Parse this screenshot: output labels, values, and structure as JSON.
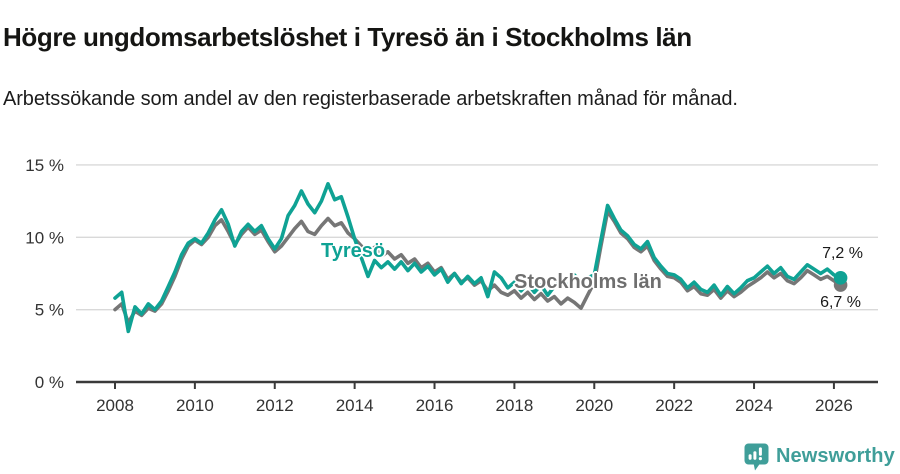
{
  "header": {
    "title": "Högre ungdomsarbetslöshet i Tyresö än i Stockholms län",
    "subtitle": "Arbetssökande som andel av den registerbaserade arbetskraften månad för månad."
  },
  "chart_data": {
    "type": "line",
    "x_start": 2008,
    "x_step": 0.16667,
    "x_unit": "year (monthly data)",
    "xlim": [
      2007.1,
      2027.15
    ],
    "ylim": [
      0,
      15
    ],
    "grid": "horizontal",
    "legend_position": "inline-labels-on-chart",
    "x_ticks": [
      2008,
      2010,
      2012,
      2014,
      2016,
      2018,
      2020,
      2022,
      2024,
      2026
    ],
    "y_ticks": [
      {
        "value": 0,
        "label": "0 %"
      },
      {
        "value": 5,
        "label": "5 %"
      },
      {
        "value": 10,
        "label": "10 %"
      },
      {
        "value": 15,
        "label": "15 %"
      }
    ],
    "series": [
      {
        "name": "Tyresö",
        "color": "#0fa294",
        "end_label": "7,2 %",
        "end_value": 7.2,
        "values": [
          5.8,
          6.2,
          3.5,
          5.2,
          4.7,
          5.4,
          5.0,
          5.6,
          6.6,
          7.6,
          8.8,
          9.6,
          9.9,
          9.6,
          10.3,
          11.2,
          11.9,
          10.9,
          9.4,
          10.4,
          10.9,
          10.4,
          10.8,
          9.9,
          9.2,
          9.9,
          11.5,
          12.2,
          13.2,
          12.3,
          11.7,
          12.5,
          13.7,
          12.6,
          12.8,
          11.4,
          9.9,
          8.6,
          7.3,
          8.4,
          7.9,
          8.3,
          7.8,
          8.3,
          7.7,
          8.2,
          7.6,
          8.0,
          7.4,
          7.8,
          6.9,
          7.5,
          6.8,
          7.3,
          6.8,
          7.2,
          5.9,
          7.6,
          7.2,
          6.5,
          6.9,
          6.3,
          6.8,
          6.2,
          6.7,
          6.0,
          6.6,
          7.0,
          6.6,
          7.4,
          6.9,
          7.2,
          7.4,
          9.8,
          12.2,
          11.3,
          10.5,
          10.1,
          9.5,
          9.2,
          9.7,
          8.6,
          8.0,
          7.5,
          7.4,
          7.1,
          6.5,
          6.9,
          6.4,
          6.2,
          6.7,
          6.0,
          6.6,
          6.1,
          6.5,
          7.0,
          7.2,
          7.6,
          8.0,
          7.5,
          7.9,
          7.3,
          7.1,
          7.6,
          8.1,
          7.8,
          7.5,
          7.8,
          7.4,
          7.2
        ]
      },
      {
        "name": "Stockholms län",
        "color": "#767676",
        "end_label": "6,7 %",
        "end_value": 6.7,
        "values": [
          5.0,
          5.4,
          4.1,
          4.9,
          4.6,
          5.1,
          4.9,
          5.4,
          6.3,
          7.3,
          8.5,
          9.4,
          9.8,
          9.5,
          10.0,
          10.8,
          11.2,
          10.4,
          9.5,
          10.2,
          10.7,
          10.2,
          10.5,
          9.7,
          9.0,
          9.4,
          10.0,
          10.6,
          11.1,
          10.4,
          10.2,
          10.8,
          11.3,
          10.8,
          11.0,
          10.3,
          9.9,
          9.4,
          8.9,
          9.3,
          8.7,
          9.0,
          8.5,
          8.8,
          8.2,
          8.5,
          7.9,
          8.2,
          7.6,
          7.9,
          7.1,
          7.5,
          6.9,
          7.2,
          6.7,
          7.0,
          6.3,
          6.7,
          6.2,
          6.0,
          6.3,
          5.8,
          6.2,
          5.7,
          6.1,
          5.6,
          5.9,
          5.4,
          5.8,
          5.5,
          5.1,
          6.0,
          6.9,
          9.4,
          11.8,
          11.1,
          10.3,
          9.9,
          9.3,
          9.0,
          9.4,
          8.4,
          7.8,
          7.3,
          7.2,
          6.9,
          6.3,
          6.6,
          6.1,
          6.0,
          6.4,
          5.8,
          6.3,
          5.9,
          6.2,
          6.6,
          6.9,
          7.2,
          7.6,
          7.2,
          7.5,
          7.0,
          6.8,
          7.2,
          7.7,
          7.4,
          7.1,
          7.3,
          7.0,
          6.7
        ]
      }
    ]
  },
  "colors": {
    "accent_teal": "#0fa294",
    "line_gray": "#767676",
    "gridline": "#d9d9d9",
    "axis": "#3a3a3a",
    "tick_text": "#333333",
    "brand_teal": "#3f9e99"
  },
  "footer": {
    "brand": "Newsworthy",
    "logo_icon": "chart-speech-bubble-icon"
  }
}
